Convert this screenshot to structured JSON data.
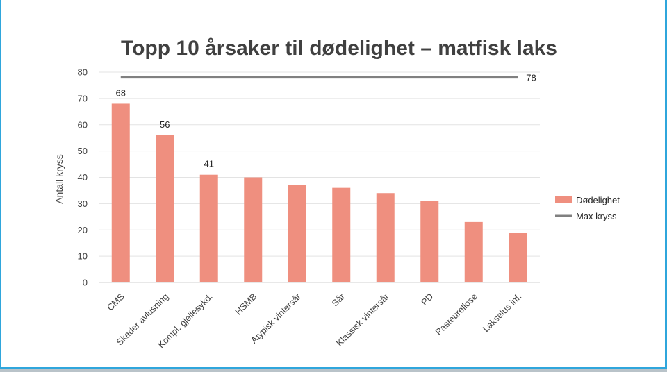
{
  "chart_data": {
    "type": "bar",
    "title": "Topp 10 årsaker til dødelighet – matfisk laks",
    "ylabel": "Antall kryss",
    "xlabel": "",
    "ylim": [
      0,
      80
    ],
    "yticks": [
      0,
      10,
      20,
      30,
      40,
      50,
      60,
      70,
      80
    ],
    "categories": [
      "CMS",
      "Skader avlusning",
      "Kompl. gjellesykd.",
      "HSMB",
      "Atypisk vintersår",
      "Sår",
      "Klassisk vintersår",
      "PD",
      "Pasteurellose",
      "Lakselus inf."
    ],
    "series": [
      {
        "name": "Dødelighet",
        "kind": "bar",
        "color": "#ef8f7f",
        "values": [
          68,
          56,
          41,
          40,
          37,
          36,
          34,
          31,
          23,
          19
        ],
        "data_labels": [
          "68",
          "56",
          "41",
          null,
          null,
          null,
          null,
          null,
          null,
          null
        ]
      },
      {
        "name": "Max kryss",
        "kind": "line",
        "color": "#808080",
        "values": [
          78,
          78,
          78,
          78,
          78,
          78,
          78,
          78,
          78,
          78
        ],
        "data_label": "78"
      }
    ],
    "grid": true,
    "legend": "right"
  }
}
